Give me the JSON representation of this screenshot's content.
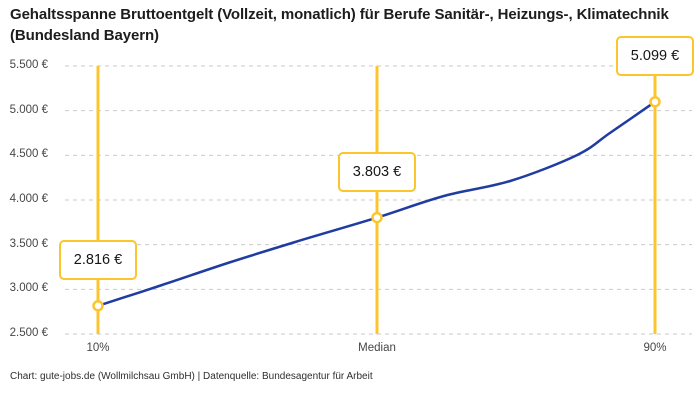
{
  "title": "Gehaltsspanne Bruttoentgelt (Vollzeit, monatlich) für Berufe Sanitär-, Heizungs-, Klimatechnik (Bundesland Bayern)",
  "footer": "Chart: gute-jobs.de (Wollmilchsau GmbH) | Datenquelle: Bundesagentur für Arbeit",
  "colors": {
    "accent_yellow": "#FCC42D",
    "line_blue": "#1F3DA0",
    "grid": "#C9C9C9",
    "title_text": "#1D1D1D",
    "axis_text": "#474747",
    "box_text": "#161616",
    "background": "#FFFFFF"
  },
  "chart_data": {
    "type": "line",
    "title": "Gehaltsspanne Bruttoentgelt (Vollzeit, monatlich) für Berufe Sanitär-, Heizungs-, Klimatechnik (Bundesland Bayern)",
    "source": "Chart: gute-jobs.de (Wollmilchsau GmbH) | Datenquelle: Bundesagentur für Arbeit",
    "currency": "EUR",
    "grid": "horizontal-dashed",
    "legend_position": "none",
    "y_range": [
      2500,
      5500
    ],
    "y_ticks": [
      {
        "value": 5500,
        "label": "5.500 €"
      },
      {
        "value": 5000,
        "label": "5.000 €"
      },
      {
        "value": 4500,
        "label": "4.500 €"
      },
      {
        "value": 4000,
        "label": "4.000 €"
      },
      {
        "value": 3500,
        "label": "3.500 €"
      },
      {
        "value": 3000,
        "label": "3.000 €"
      },
      {
        "value": 2500,
        "label": "2.500 €"
      }
    ],
    "x_categories": [
      "10%",
      "Median",
      "90%"
    ],
    "points": [
      {
        "label": "10%",
        "value": 2816,
        "value_label": "2.816 €"
      },
      {
        "label": "Median",
        "value": 3803,
        "value_label": "3.803 €"
      },
      {
        "label": "90%",
        "value": 5099,
        "value_label": "5.099 €"
      }
    ],
    "curve_samples": [
      {
        "t": 0.0,
        "value": 2816
      },
      {
        "t": 0.115,
        "value": 3048
      },
      {
        "t": 0.233,
        "value": 3295
      },
      {
        "t": 0.354,
        "value": 3530
      },
      {
        "t": 0.501,
        "value": 3803
      },
      {
        "t": 0.621,
        "value": 4045
      },
      {
        "t": 0.74,
        "value": 4213
      },
      {
        "t": 0.86,
        "value": 4503
      },
      {
        "t": 0.919,
        "value": 4750
      },
      {
        "t": 1.0,
        "value": 5099
      }
    ]
  }
}
